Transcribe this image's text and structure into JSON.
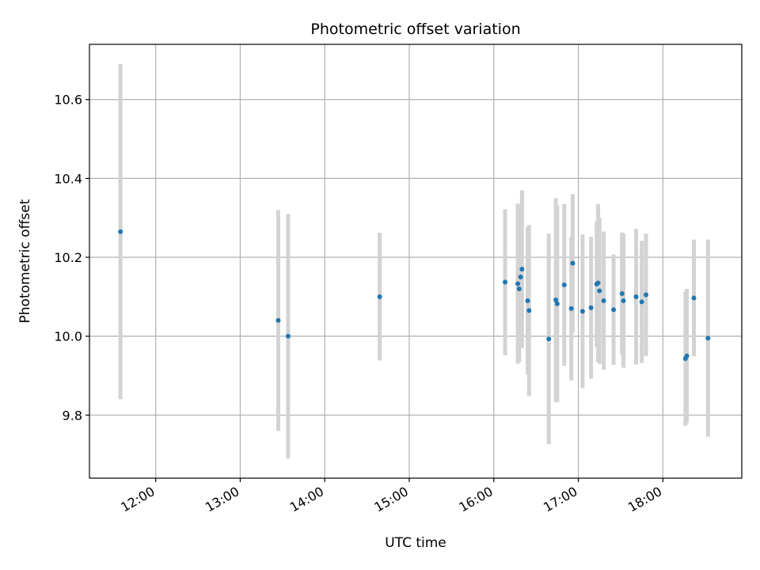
{
  "chart_data": {
    "type": "scatter",
    "title": "Photometric offset variation",
    "xlabel": "UTC time",
    "ylabel": "Photometric offset",
    "x_ticks": [
      "12:00",
      "13:00",
      "14:00",
      "15:00",
      "16:00",
      "17:00",
      "18:00"
    ],
    "y_ticks": [
      "9.8",
      "10.0",
      "10.2",
      "10.4",
      "10.6"
    ],
    "xlim": [
      "11:13",
      "18:56"
    ],
    "ylim": [
      9.64,
      10.74
    ],
    "grid": true,
    "colors": {
      "point": "#1f77b4",
      "errorbar": "#d3d3d3",
      "grid": "#b0b0b0"
    },
    "points": [
      {
        "x": "11:35",
        "y": 10.265,
        "err": 0.425
      },
      {
        "x": "13:27",
        "y": 10.04,
        "err": 0.28
      },
      {
        "x": "13:34",
        "y": 10.0,
        "err": 0.31
      },
      {
        "x": "14:39",
        "y": 10.1,
        "err": 0.162
      },
      {
        "x": "16:08",
        "y": 10.137,
        "err": 0.185
      },
      {
        "x": "16:17",
        "y": 10.133,
        "err": 0.203
      },
      {
        "x": "16:18",
        "y": 10.12,
        "err": 0.185
      },
      {
        "x": "16:19",
        "y": 10.15,
        "err": 0.18
      },
      {
        "x": "16:20",
        "y": 10.17,
        "err": 0.2
      },
      {
        "x": "16:24",
        "y": 10.09,
        "err": 0.187
      },
      {
        "x": "16:25",
        "y": 10.065,
        "err": 0.217
      },
      {
        "x": "16:39",
        "y": 9.993,
        "err": 0.267
      },
      {
        "x": "16:44",
        "y": 10.092,
        "err": 0.258
      },
      {
        "x": "16:45",
        "y": 10.082,
        "err": 0.25
      },
      {
        "x": "16:50",
        "y": 10.13,
        "err": 0.205
      },
      {
        "x": "16:55",
        "y": 10.07,
        "err": 0.182
      },
      {
        "x": "16:56",
        "y": 10.185,
        "err": 0.175
      },
      {
        "x": "17:03",
        "y": 10.063,
        "err": 0.195
      },
      {
        "x": "17:09",
        "y": 10.072,
        "err": 0.18
      },
      {
        "x": "17:13",
        "y": 10.132,
        "err": 0.16
      },
      {
        "x": "17:14",
        "y": 10.135,
        "err": 0.2
      },
      {
        "x": "17:15",
        "y": 10.115,
        "err": 0.185
      },
      {
        "x": "17:18",
        "y": 10.09,
        "err": 0.175
      },
      {
        "x": "17:25",
        "y": 10.067,
        "err": 0.14
      },
      {
        "x": "17:31",
        "y": 10.108,
        "err": 0.155
      },
      {
        "x": "17:32",
        "y": 10.09,
        "err": 0.17
      },
      {
        "x": "17:41",
        "y": 10.1,
        "err": 0.172
      },
      {
        "x": "17:45",
        "y": 10.087,
        "err": 0.155
      },
      {
        "x": "17:48",
        "y": 10.105,
        "err": 0.155
      },
      {
        "x": "18:16",
        "y": 9.943,
        "err": 0.17
      },
      {
        "x": "18:17",
        "y": 9.95,
        "err": 0.17
      },
      {
        "x": "18:22",
        "y": 10.097,
        "err": 0.148
      },
      {
        "x": "18:32",
        "y": 9.995,
        "err": 0.25
      }
    ]
  }
}
